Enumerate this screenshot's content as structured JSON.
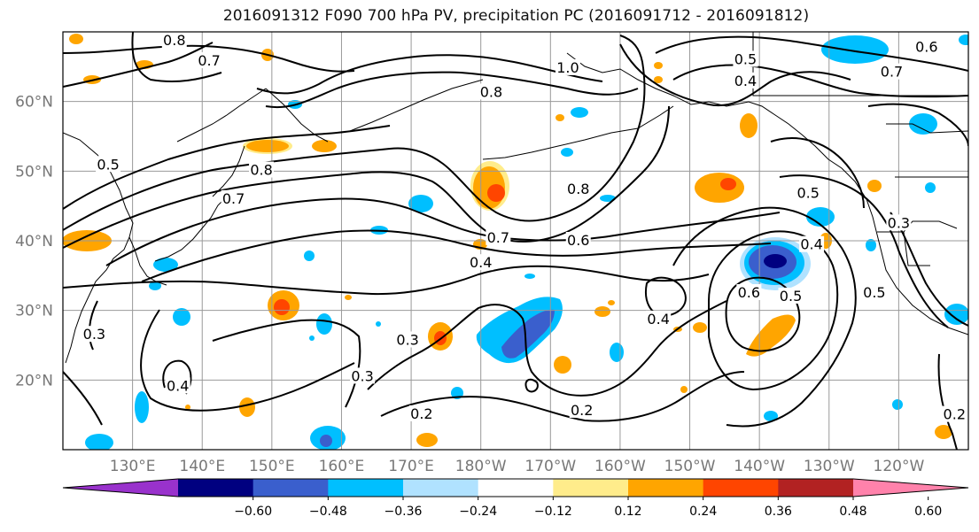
{
  "title": "2016091312 F090 700 hPa PV, precipitation PC (2016091712 - 2016091812)",
  "lat_labels": [
    {
      "label": "60°N",
      "lat": 60
    },
    {
      "label": "50°N",
      "lat": 50
    },
    {
      "label": "40°N",
      "lat": 40
    },
    {
      "label": "30°N",
      "lat": 30
    },
    {
      "label": "20°N",
      "lat": 20
    }
  ],
  "lon_labels": [
    {
      "label": "130°E",
      "lon": 130
    },
    {
      "label": "140°E",
      "lon": 140
    },
    {
      "label": "150°E",
      "lon": 150
    },
    {
      "label": "160°E",
      "lon": 160
    },
    {
      "label": "170°E",
      "lon": 170
    },
    {
      "label": "180°W",
      "lon": 180
    },
    {
      "label": "170°W",
      "lon": 190
    },
    {
      "label": "160°W",
      "lon": 200
    },
    {
      "label": "150°W",
      "lon": 210
    },
    {
      "label": "140°W",
      "lon": 220
    },
    {
      "label": "130°W",
      "lon": 230
    },
    {
      "label": "120°W",
      "lon": 240
    }
  ],
  "extent": {
    "lon_min": 120,
    "lon_max": 250,
    "lat_min": 10,
    "lat_max": 70
  },
  "colorbar": {
    "colors": [
      "#9932cc",
      "#000080",
      "#3a5fcd",
      "#00bfff",
      "#b0e2ff",
      "#ffffff",
      "#ffec8b",
      "#ffa500",
      "#ff4500",
      "#b22222",
      "#ff82ab"
    ],
    "tick_labels": [
      "−0.60",
      "−0.48",
      "−0.36",
      "−0.24",
      "−0.12",
      "0.12",
      "0.24",
      "0.36",
      "0.48",
      "0.60"
    ],
    "tick_values": [
      -0.6,
      -0.48,
      -0.36,
      -0.24,
      -0.12,
      0.12,
      0.24,
      0.36,
      0.48,
      0.6
    ]
  },
  "contour_labels": [
    {
      "text": "0.8",
      "lon": 136.0,
      "lat": 68.7
    },
    {
      "text": "0.7",
      "lon": 141.0,
      "lat": 65.8
    },
    {
      "text": "1.0",
      "lon": 192.5,
      "lat": 64.8
    },
    {
      "text": "0.8",
      "lon": 181.5,
      "lat": 61.3
    },
    {
      "text": "0.5",
      "lon": 218.0,
      "lat": 66.0
    },
    {
      "text": "0.4",
      "lon": 218.0,
      "lat": 62.9
    },
    {
      "text": "0.7",
      "lon": 239.0,
      "lat": 64.2
    },
    {
      "text": "0.6",
      "lon": 244.0,
      "lat": 67.8
    },
    {
      "text": "0.5",
      "lon": 126.5,
      "lat": 50.9
    },
    {
      "text": "0.8",
      "lon": 148.5,
      "lat": 50.1
    },
    {
      "text": "0.7",
      "lon": 144.5,
      "lat": 46.0
    },
    {
      "text": "0.8",
      "lon": 194.0,
      "lat": 47.4
    },
    {
      "text": "0.5",
      "lon": 227.0,
      "lat": 46.8
    },
    {
      "text": "0.7",
      "lon": 182.5,
      "lat": 40.4
    },
    {
      "text": "0.6",
      "lon": 194.0,
      "lat": 40.0
    },
    {
      "text": "0.4",
      "lon": 180.0,
      "lat": 36.8
    },
    {
      "text": "0.4",
      "lon": 227.5,
      "lat": 39.4
    },
    {
      "text": "0.3",
      "lon": 240.0,
      "lat": 42.5
    },
    {
      "text": "0.6",
      "lon": 218.5,
      "lat": 32.5
    },
    {
      "text": "0.5",
      "lon": 224.5,
      "lat": 32.0
    },
    {
      "text": "0.5",
      "lon": 236.5,
      "lat": 32.5
    },
    {
      "text": "0.4",
      "lon": 205.5,
      "lat": 28.7
    },
    {
      "text": "0.3",
      "lon": 169.5,
      "lat": 25.7
    },
    {
      "text": "0.3",
      "lon": 163.0,
      "lat": 20.5
    },
    {
      "text": "0.4",
      "lon": 136.5,
      "lat": 19.1
    },
    {
      "text": "0.2",
      "lon": 171.5,
      "lat": 15.1
    },
    {
      "text": "0.2",
      "lon": 194.5,
      "lat": 15.6
    },
    {
      "text": "0.2",
      "lon": 248.0,
      "lat": 15.0
    },
    {
      "text": "0.3",
      "lon": 124.5,
      "lat": 26.5
    }
  ]
}
